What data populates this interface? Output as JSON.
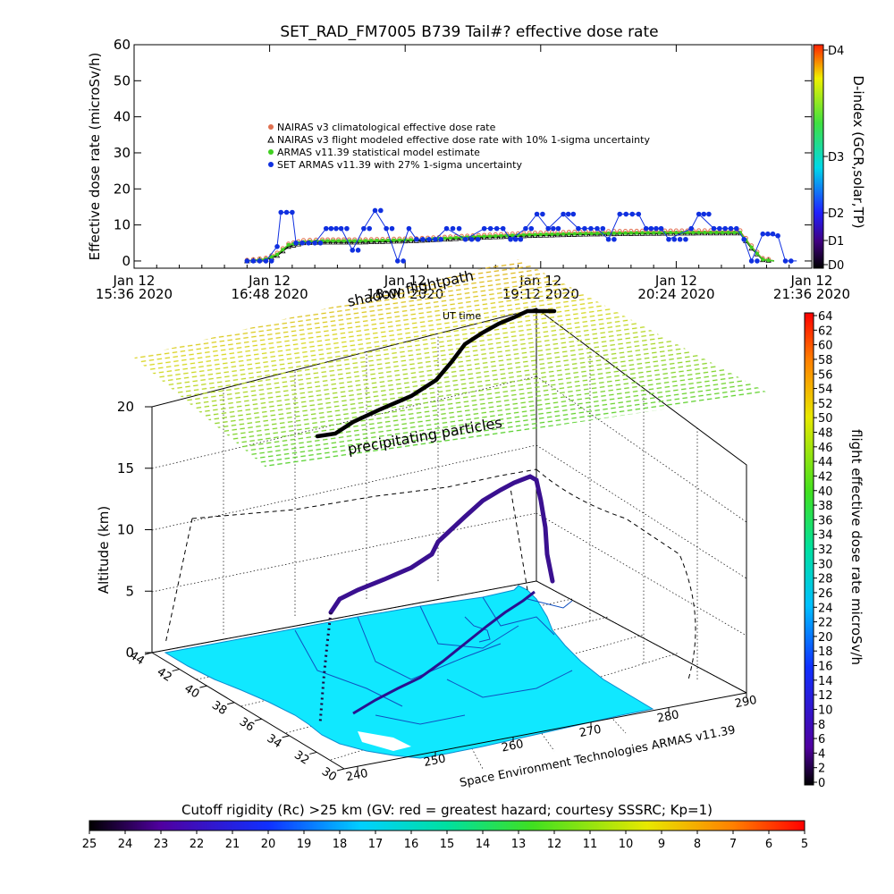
{
  "chart_data": [
    {
      "type": "line",
      "title": "SET_RAD_FM7005   B739 Tail#? effective dose rate",
      "ylabel": "Effective dose rate (microSv/h)",
      "yticks": [
        "0",
        "10",
        "20",
        "30",
        "40",
        "50",
        "60"
      ],
      "ylim": [
        0,
        60
      ],
      "xticks": [
        {
          "label1": "Jan 12",
          "label2": "15:36 2020",
          "t": 0
        },
        {
          "label1": "Jan 12",
          "label2": "16:48 2020",
          "t": 72
        },
        {
          "label1": "Jan 12",
          "label2": "18:00 2020",
          "t": 144
        },
        {
          "label1": "Jan 12",
          "label2": "19:12 2020",
          "t": 216
        },
        {
          "label1": "Jan 12",
          "label2": "20:24 2020",
          "t": 288
        },
        {
          "label1": "Jan 12",
          "label2": "21:36 2020",
          "t": 360
        }
      ],
      "legend": [
        {
          "label": "NAIRAS v3 climatological effective dose rate",
          "color": "#e07050",
          "marker": "o"
        },
        {
          "label": "NAIRAS v3 flight modeled effective dose rate with 10% 1-sigma uncertainty",
          "color": "#000000",
          "marker": "triangle"
        },
        {
          "label": "ARMAS v11.39 statistical model estimate",
          "color": "#40d020",
          "marker": "star"
        },
        {
          "label": "SET ARMAS v11.39 with 27% 1-sigma uncertainty",
          "color": "#1030e0",
          "marker": "o"
        }
      ],
      "legend_position": "center",
      "series": [
        {
          "name": "NAIRAS v3 climatological effective dose rate",
          "points": [
            [
              60,
              0
            ],
            [
              70,
              0.6
            ],
            [
              76,
              2
            ],
            [
              82,
              4.5
            ],
            [
              90,
              5.5
            ],
            [
              100,
              5.7
            ],
            [
              120,
              5.7
            ],
            [
              150,
              6
            ],
            [
              180,
              6.8
            ],
            [
              210,
              7.5
            ],
            [
              240,
              7.9
            ],
            [
              270,
              8.1
            ],
            [
              300,
              8.2
            ],
            [
              322,
              8.2
            ],
            [
              328,
              4
            ],
            [
              334,
              0.5
            ],
            [
              340,
              0
            ]
          ]
        },
        {
          "name": "NAIRAS v3 flight modeled effective dose rate with 10% 1-sigma uncertainty",
          "points": [
            [
              60,
              0
            ],
            [
              70,
              0.4
            ],
            [
              76,
              1.5
            ],
            [
              82,
              4
            ],
            [
              90,
              5
            ],
            [
              100,
              5.2
            ],
            [
              120,
              5.2
            ],
            [
              150,
              5.6
            ],
            [
              180,
              6.4
            ],
            [
              210,
              7
            ],
            [
              240,
              7.4
            ],
            [
              270,
              7.6
            ],
            [
              300,
              7.7
            ],
            [
              322,
              7.7
            ],
            [
              328,
              3.5
            ],
            [
              334,
              0.3
            ],
            [
              340,
              0
            ]
          ]
        },
        {
          "name": "ARMAS v11.39 statistical model estimate",
          "points": [
            [
              60,
              0
            ],
            [
              70,
              0.5
            ],
            [
              76,
              1.8
            ],
            [
              82,
              4.5
            ],
            [
              90,
              5.3
            ],
            [
              100,
              5.6
            ],
            [
              120,
              5.6
            ],
            [
              150,
              5.9
            ],
            [
              180,
              6.7
            ],
            [
              210,
              7.3
            ],
            [
              240,
              7.6
            ],
            [
              270,
              7.8
            ],
            [
              300,
              7.9
            ],
            [
              322,
              7.9
            ],
            [
              328,
              3.8
            ],
            [
              334,
              0.4
            ],
            [
              340,
              0
            ]
          ]
        },
        {
          "name": "SET ARMAS v11.39 with 27% 1-sigma uncertainty",
          "points": [
            [
              60,
              0
            ],
            [
              70,
              0
            ],
            [
              76,
              4
            ],
            [
              78,
              13.5
            ],
            [
              84,
              13.5
            ],
            [
              86,
              5
            ],
            [
              96,
              5
            ],
            [
              102,
              9
            ],
            [
              110,
              9
            ],
            [
              116,
              3
            ],
            [
              122,
              9
            ],
            [
              128,
              14
            ],
            [
              134,
              9
            ],
            [
              140,
              0
            ],
            [
              146,
              9
            ],
            [
              150,
              6
            ],
            [
              160,
              6
            ],
            [
              166,
              9
            ],
            [
              176,
              6
            ],
            [
              186,
              9
            ],
            [
              196,
              9
            ],
            [
              200,
              6
            ],
            [
              208,
              9
            ],
            [
              214,
              13
            ],
            [
              220,
              9
            ],
            [
              228,
              13
            ],
            [
              236,
              9
            ],
            [
              246,
              9
            ],
            [
              252,
              6
            ],
            [
              258,
              13
            ],
            [
              268,
              13
            ],
            [
              272,
              9
            ],
            [
              280,
              9
            ],
            [
              284,
              6
            ],
            [
              296,
              9
            ],
            [
              300,
              13
            ],
            [
              308,
              9
            ],
            [
              320,
              9
            ],
            [
              324,
              6
            ],
            [
              328,
              0
            ],
            [
              334,
              7.5
            ],
            [
              342,
              7
            ],
            [
              346,
              0
            ],
            [
              352,
              0
            ]
          ]
        }
      ],
      "dindex_colorbar": {
        "label": "D-index (GCR,solar,TP)",
        "ticks": [
          "D0",
          "D1",
          "D2",
          "D3",
          "D4"
        ]
      }
    },
    {
      "type": "scatter",
      "annotations": [
        "shadow flightpath",
        "UT time",
        "precipitating particles"
      ],
      "ylabel": "Altitude (km)",
      "zticks": [
        "0",
        "5",
        "10",
        "15",
        "20"
      ],
      "zlim": [
        0,
        20
      ],
      "lat_ticks": [
        "44",
        "42",
        "40",
        "38",
        "36",
        "34",
        "32",
        "30"
      ],
      "lon_ticks": [
        "240",
        "250",
        "260",
        "270",
        "280",
        "290"
      ],
      "credit": "Space Environment Technologies ARMAS v11.39",
      "flight_path": [
        {
          "lon": 244,
          "lat": 31,
          "alt": 0
        },
        {
          "lon": 245,
          "lat": 33,
          "alt": 2
        },
        {
          "lon": 246,
          "lat": 36,
          "alt": 4
        },
        {
          "lon": 247,
          "lat": 37,
          "alt": 5
        },
        {
          "lon": 252,
          "lat": 39,
          "alt": 7
        },
        {
          "lon": 258,
          "lat": 40,
          "alt": 8.5
        },
        {
          "lon": 263,
          "lat": 41,
          "alt": 10
        },
        {
          "lon": 268,
          "lat": 41.5,
          "alt": 12
        },
        {
          "lon": 274,
          "lat": 41.8,
          "alt": 13.5
        },
        {
          "lon": 276,
          "lat": 42,
          "alt": 12
        },
        {
          "lon": 277,
          "lat": 42,
          "alt": 8
        },
        {
          "lon": 278,
          "lat": 42,
          "alt": 5
        }
      ],
      "dose_colorbar": {
        "label": "flight effective dose rate microSv/h",
        "ticks": [
          "0",
          "2",
          "4",
          "6",
          "8",
          "10",
          "12",
          "14",
          "16",
          "18",
          "20",
          "22",
          "24",
          "26",
          "28",
          "30",
          "32",
          "34",
          "36",
          "38",
          "40",
          "42",
          "44",
          "46",
          "48",
          "50",
          "52",
          "54",
          "56",
          "58",
          "60",
          "62",
          "64"
        ],
        "range": [
          0,
          64
        ]
      },
      "rigidity_colorbar": {
        "label": "Cutoff rigidity (Rc) >25 km (GV: red = greatest hazard; courtesy SSSRC; Kp=1)",
        "ticks": [
          "25",
          "24",
          "23",
          "22",
          "21",
          "20",
          "19",
          "18",
          "17",
          "16",
          "15",
          "14",
          "13",
          "12",
          "11",
          "10",
          "9",
          "8",
          "7",
          "6",
          "5"
        ],
        "range": [
          25,
          5
        ]
      }
    }
  ]
}
